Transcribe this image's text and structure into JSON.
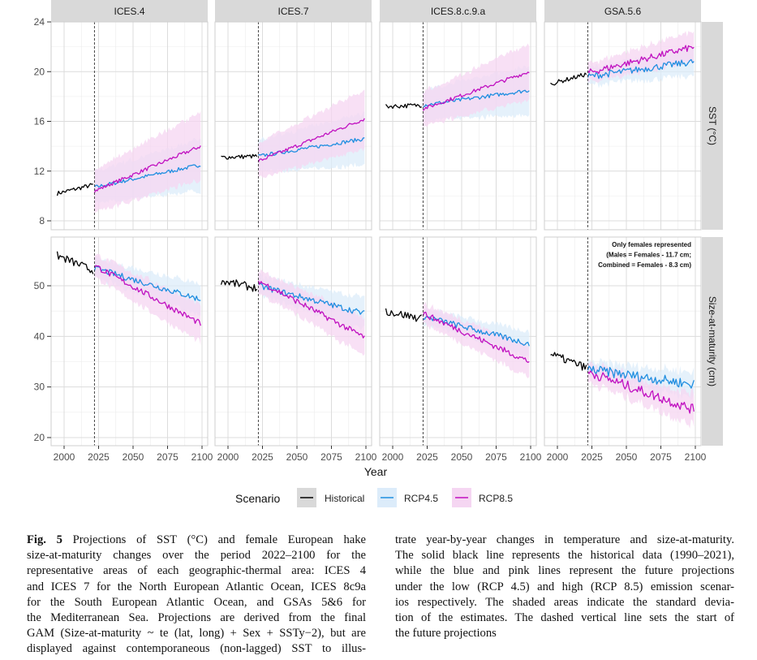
{
  "chart_data": {
    "type": "line",
    "layout": "facet-grid",
    "facet_columns": [
      "ICES.4",
      "ICES.7",
      "ICES.8.c.9.a",
      "GSA.5.6"
    ],
    "facet_rows": [
      "SST (°C)",
      "Size-at-maturity (cm)"
    ],
    "xlabel": "Year",
    "x_ticks": [
      2000,
      2025,
      2050,
      2075,
      2100
    ],
    "xlim": [
      1990,
      2100
    ],
    "projection_start_year": 2022,
    "rows": [
      {
        "label": "SST (°C)",
        "ylim": [
          7.4,
          24
        ],
        "y_ticks": [
          8,
          12,
          16,
          20,
          24
        ]
      },
      {
        "label": "Size-at-maturity (cm)",
        "ylim": [
          19.2,
          60
        ],
        "y_ticks": [
          20,
          30,
          40,
          50
        ]
      }
    ],
    "legend": {
      "title": "Scenario",
      "position": "bottom",
      "entries": [
        {
          "name": "Historical",
          "color": "#000000",
          "fill": "#d9d9d9"
        },
        {
          "name": "RCP4.5",
          "color": "#1f8ee0",
          "fill": "#dcecfa"
        },
        {
          "name": "RCP8.5",
          "color": "#c010c0",
          "fill": "#f5d6f2"
        }
      ]
    },
    "panels": [
      {
        "column": "ICES.4",
        "row": "SST (°C)",
        "historical": {
          "years": [
            1990,
            2021
          ],
          "start": 10.2,
          "end": 10.9
        },
        "rcp45": {
          "start": 10.7,
          "end": 12.5,
          "sd": 1.7
        },
        "rcp85": {
          "start": 10.4,
          "end": 14.0,
          "sd": 2.2
        }
      },
      {
        "column": "ICES.7",
        "row": "SST (°C)",
        "historical": {
          "years": [
            1990,
            2021
          ],
          "start": 13.1,
          "end": 13.2
        },
        "rcp45": {
          "start": 13.2,
          "end": 14.6,
          "sd": 1.7
        },
        "rcp85": {
          "start": 12.8,
          "end": 16.2,
          "sd": 1.9
        }
      },
      {
        "column": "ICES.8.c.9.a",
        "row": "SST (°C)",
        "historical": {
          "years": [
            1990,
            2021
          ],
          "start": 17.2,
          "end": 17.3
        },
        "rcp45": {
          "start": 17.3,
          "end": 18.5,
          "sd": 1.6
        },
        "rcp85": {
          "start": 17.0,
          "end": 20.0,
          "sd": 1.8
        }
      },
      {
        "column": "GSA.5.6",
        "row": "SST (°C)",
        "historical": {
          "years": [
            1990,
            2021
          ],
          "start": 19.0,
          "end": 19.8
        },
        "rcp45": {
          "start": 19.6,
          "end": 20.8,
          "sd": 0.9
        },
        "rcp85": {
          "start": 19.9,
          "end": 22.0,
          "sd": 1.0
        }
      },
      {
        "column": "ICES.4",
        "row": "Size-at-maturity (cm)",
        "historical": {
          "years": [
            1990,
            2021
          ],
          "start": 56.0,
          "end": 53.0
        },
        "rcp45": {
          "start": 53.5,
          "end": 47.3,
          "sd": 2.5
        },
        "rcp85": {
          "start": 54.0,
          "end": 42.5,
          "sd": 3.0
        }
      },
      {
        "column": "ICES.7",
        "row": "Size-at-maturity (cm)",
        "historical": {
          "years": [
            1990,
            2021
          ],
          "start": 51.0,
          "end": 49.5
        },
        "rcp45": {
          "start": 50.0,
          "end": 44.5,
          "sd": 2.5
        },
        "rcp85": {
          "start": 51.0,
          "end": 39.8,
          "sd": 3.0
        }
      },
      {
        "column": "ICES.8.c.9.a",
        "row": "Size-at-maturity (cm)",
        "historical": {
          "years": [
            1990,
            2021
          ],
          "start": 45.0,
          "end": 43.5
        },
        "rcp45": {
          "start": 44.0,
          "end": 38.5,
          "sd": 2.0
        },
        "rcp85": {
          "start": 44.5,
          "end": 35.0,
          "sd": 2.5
        }
      },
      {
        "column": "GSA.5.6",
        "row": "Size-at-maturity (cm)",
        "historical": {
          "years": [
            1990,
            2021
          ],
          "start": 36.5,
          "end": 33.8
        },
        "rcp45": {
          "start": 33.5,
          "end": 30.5,
          "sd": 2.0
        },
        "rcp85": {
          "start": 33.0,
          "end": 25.5,
          "sd": 2.5
        },
        "annotation": [
          "Only females represented",
          "(Males = Females - 11.7 cm;",
          "Combined = Females - 8.3 cm)"
        ]
      }
    ]
  },
  "caption": {
    "label": "Fig. 5",
    "left_lines": [
      " Projections of SST (°C) and female European hake",
      "size-at-maturity changes over the period 2022–2100 for the",
      "representative areas of each geographic-thermal area: ICES 4",
      "and ICES 7 for the North European Atlantic Ocean, ICES 8c9a",
      "for the South European Atlantic Ocean, and GSAs 5&6 for",
      "the Mediterranean Sea. Projections are derived from the final",
      "GAM (Size-at-maturity ~ te (lat, long) + Sex + SSTy−2), but are",
      "displayed against contemporaneous (non-lagged) SST to illus-"
    ],
    "right_lines": [
      "trate year-by-year changes in temperature and size-at-maturity.",
      "The solid black line represents the historical data (1990–2021),",
      "while the blue and pink lines represent the future projections",
      "under the low (RCP 4.5) and high (RCP 8.5) emission scenar-",
      "ios respectively. The shaded areas indicate the standard devia-",
      "tion of the estimates. The dashed vertical line sets the start of",
      "the future projections"
    ]
  }
}
